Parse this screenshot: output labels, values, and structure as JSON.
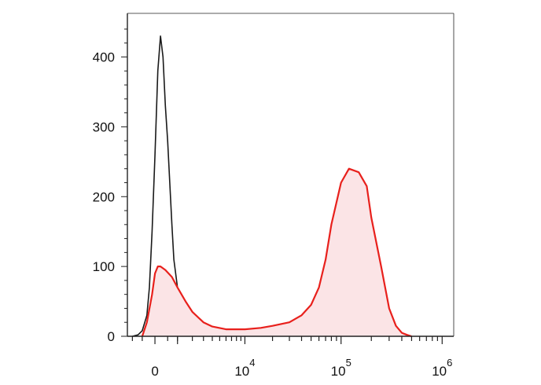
{
  "chart_data": {
    "type": "area",
    "title": "",
    "xlabel": "",
    "ylabel": "",
    "x_scale": "biexponential",
    "ylim": [
      0,
      440
    ],
    "grid": false,
    "y_ticks": [
      {
        "value": 0,
        "label": "0"
      },
      {
        "value": 100,
        "label": "100"
      },
      {
        "value": 200,
        "label": "200"
      },
      {
        "value": 300,
        "label": "300"
      },
      {
        "value": 400,
        "label": "400"
      }
    ],
    "x_ticks": [
      {
        "value": 0,
        "base": "0",
        "exp": ""
      },
      {
        "value": 10000,
        "base": "10",
        "exp": "4"
      },
      {
        "value": 100000,
        "base": "10",
        "exp": "5"
      },
      {
        "value": 1000000,
        "base": "10",
        "exp": "6"
      }
    ],
    "series": [
      {
        "color": "#1a1a1a",
        "fill": "none",
        "x": [
          -1000,
          -700,
          -500,
          -300,
          -200,
          -100,
          0,
          100,
          200,
          300,
          400,
          500,
          600,
          700,
          800,
          1000,
          1200,
          1400,
          1700,
          2000,
          2300,
          2600,
          3000
        ],
        "y": [
          0,
          2,
          8,
          30,
          70,
          150,
          260,
          380,
          430,
          400,
          330,
          280,
          220,
          160,
          110,
          70,
          45,
          30,
          18,
          10,
          5,
          2,
          0
        ]
      },
      {
        "color": "#e8201c",
        "fill": "#fbe4e6",
        "x": [
          -500,
          -300,
          -100,
          0,
          100,
          200,
          400,
          700,
          1000,
          1500,
          2000,
          3000,
          4000,
          6000,
          8000,
          10000,
          15000,
          20000,
          30000,
          40000,
          50000,
          60000,
          70000,
          80000,
          100000,
          120000,
          150000,
          180000,
          200000,
          250000,
          300000,
          350000,
          400000,
          450000,
          500000
        ],
        "y": [
          0,
          20,
          60,
          90,
          100,
          100,
          95,
          85,
          70,
          50,
          35,
          20,
          14,
          10,
          10,
          10,
          12,
          15,
          20,
          30,
          45,
          70,
          110,
          160,
          220,
          240,
          235,
          215,
          170,
          100,
          40,
          15,
          5,
          2,
          0
        ]
      }
    ]
  }
}
